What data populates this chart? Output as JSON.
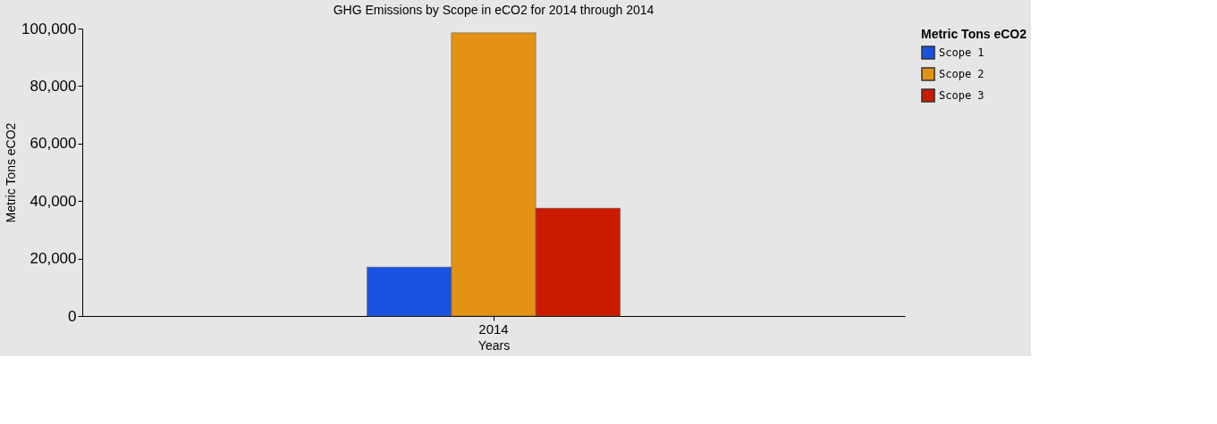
{
  "chart_data": {
    "type": "bar",
    "title": "GHG Emissions by Scope in eCO2 for 2014 through 2014",
    "xlabel": "Years",
    "ylabel": "Metric Tons eCO2",
    "legend_title": "Metric Tons eCO2",
    "categories": [
      "2014"
    ],
    "series": [
      {
        "name": "Scope 1",
        "color": "#1a52e0",
        "values": [
          17000
        ]
      },
      {
        "name": "Scope 2",
        "color": "#e39214",
        "values": [
          98500
        ]
      },
      {
        "name": "Scope 3",
        "color": "#cc1a00",
        "values": [
          37500
        ]
      }
    ],
    "ylim": [
      0,
      100000
    ],
    "yticks": [
      0,
      {
        "value": 20000,
        "label": "20,000"
      },
      {
        "value": 40000,
        "label": "40,000"
      },
      {
        "value": 60000,
        "label": "60,000"
      },
      {
        "value": 80000,
        "label": "80,000"
      },
      {
        "value": 100000,
        "label": "100,000"
      }
    ],
    "grid": false,
    "legend": "top right"
  }
}
